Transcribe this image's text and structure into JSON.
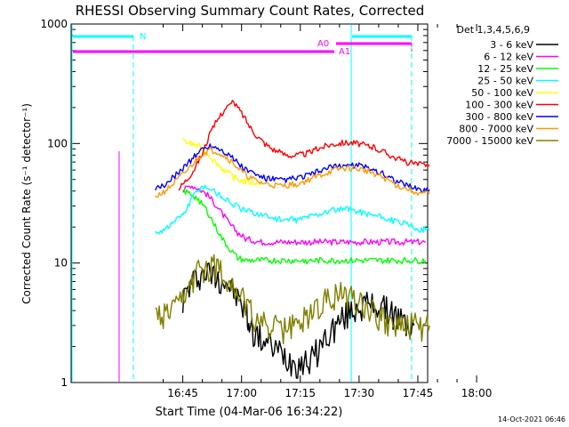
{
  "chart_data": {
    "type": "line",
    "title": "RHESSI Observing Summary Count Rates, Corrected",
    "xlabel": "Start Time (04-Mar-06 16:34:22)",
    "ylabel": "Corrected Count Rate (s⁻¹ detector⁻¹)",
    "y_scale": "log",
    "ylim": [
      1,
      1000
    ],
    "xlim_minutes": [
      16.5,
      107.5
    ],
    "x_ticks": [
      {
        "label": "16:45",
        "minute": 45
      },
      {
        "label": "17:00",
        "minute": 60
      },
      {
        "label": "17:15",
        "minute": 75
      },
      {
        "label": "17:30",
        "minute": 90
      },
      {
        "label": "17:45",
        "minute": 105
      },
      {
        "label": "18:00",
        "minute": 120
      }
    ],
    "y_ticks": [
      {
        "label": "1",
        "value": 1
      },
      {
        "label": "10",
        "value": 10
      },
      {
        "label": "100",
        "value": 100
      },
      {
        "label": "1000",
        "value": 1000
      }
    ],
    "grid": false,
    "legend_title": "Det 1,3,4,5,6,9",
    "legend_position": "right",
    "footer": "14-Oct-2021 06:46",
    "series": [
      {
        "name": "3 - 6 keV",
        "color": "#000000",
        "x": [
          45,
          47,
          49,
          51,
          53,
          55,
          57,
          59,
          61,
          62,
          64,
          66,
          68,
          70,
          72,
          74,
          76,
          78,
          80,
          82,
          84,
          86,
          88,
          90,
          92,
          94,
          96,
          98,
          100,
          102,
          104
        ],
        "values": [
          5,
          6.5,
          8,
          8.5,
          8,
          7.5,
          6.5,
          5,
          4,
          3,
          2.5,
          2.2,
          2,
          1.8,
          1.6,
          1.5,
          1.5,
          1.6,
          2,
          2.5,
          3,
          3.5,
          4,
          4.5,
          4.5,
          4.5,
          4.2,
          4,
          3.5,
          3,
          3
        ]
      },
      {
        "name": "6 - 12 keV",
        "color": "#ff00ff",
        "x": [
          45,
          47,
          49,
          51,
          53,
          55,
          57,
          59,
          61,
          63,
          65,
          67,
          69,
          71,
          73,
          75,
          77,
          79,
          81,
          83,
          85,
          87,
          89,
          91,
          93,
          95,
          97,
          99,
          101,
          103,
          105,
          107
        ],
        "values": [
          40,
          45,
          42,
          38,
          32,
          26,
          21,
          18,
          16,
          15.5,
          15,
          15,
          15,
          15,
          15,
          15,
          15,
          15,
          15,
          15,
          15,
          15,
          15,
          15,
          15,
          15,
          15,
          15,
          15,
          15,
          15,
          15
        ]
      },
      {
        "name": "12 - 25 keV",
        "color": "#00ff00",
        "x": [
          45,
          47,
          49,
          51,
          53,
          55,
          57,
          59,
          61,
          63,
          65,
          67,
          69,
          71,
          73,
          75,
          77,
          79,
          81,
          83,
          85,
          87,
          89,
          91,
          93,
          95,
          97,
          99,
          101,
          103,
          105,
          107
        ],
        "values": [
          40,
          38,
          34,
          28,
          21,
          16,
          13,
          11,
          10.5,
          10.5,
          10.5,
          10.5,
          10.5,
          10.5,
          10.5,
          10.5,
          10.5,
          10.5,
          10.5,
          10.5,
          10.5,
          10.5,
          10.5,
          10.5,
          10.5,
          10.5,
          10.5,
          10.5,
          10.5,
          10.5,
          10.5,
          10.5
        ]
      },
      {
        "name": "25 - 50 keV",
        "color": "#00ffff",
        "x": [
          38,
          40,
          42,
          44,
          46,
          48,
          50,
          52,
          54,
          56,
          58,
          60,
          62,
          64,
          66,
          68,
          70,
          72,
          74,
          76,
          78,
          80,
          82,
          84,
          86,
          88,
          90,
          92,
          94,
          96,
          98,
          100,
          102,
          104,
          106,
          108
        ],
        "values": [
          18,
          19,
          21,
          24,
          28,
          38,
          44,
          42,
          38,
          34,
          31,
          28,
          27,
          26,
          25,
          24,
          23,
          23,
          23,
          24,
          25,
          26,
          27,
          28,
          28,
          28,
          27,
          26,
          25,
          24,
          23,
          22,
          21,
          20,
          19,
          19
        ]
      },
      {
        "name": "50 - 100 keV",
        "color": "#ffff00",
        "x": [
          45,
          47,
          49,
          51,
          53,
          55,
          57,
          59,
          61,
          63,
          65
        ],
        "values": [
          105,
          100,
          95,
          85,
          72,
          62,
          55,
          50,
          48,
          47,
          47
        ]
      },
      {
        "name": "100 - 300 keV",
        "color": "#ff0000",
        "x": [
          44,
          46,
          48,
          50,
          52,
          54,
          56,
          58,
          60,
          62,
          64,
          66,
          68,
          70,
          72,
          74,
          76,
          78,
          80,
          82,
          84,
          86,
          88,
          90,
          92,
          94,
          96,
          98,
          100,
          102,
          104,
          106,
          108
        ],
        "values": [
          42,
          50,
          62,
          82,
          120,
          160,
          200,
          220,
          180,
          140,
          115,
          100,
          90,
          83,
          80,
          80,
          82,
          86,
          92,
          97,
          100,
          102,
          102,
          100,
          96,
          92,
          86,
          80,
          74,
          70,
          68,
          66,
          66
        ]
      },
      {
        "name": "300 - 800 keV",
        "color": "#0000ff",
        "x": [
          38,
          40,
          42,
          44,
          46,
          48,
          50,
          52,
          54,
          56,
          58,
          60,
          62,
          64,
          66,
          68,
          70,
          72,
          74,
          76,
          78,
          80,
          82,
          84,
          86,
          88,
          90,
          92,
          94,
          96,
          98,
          100,
          102,
          104,
          106,
          108
        ],
        "values": [
          41,
          44,
          50,
          58,
          67,
          78,
          90,
          96,
          92,
          84,
          74,
          64,
          58,
          54,
          51,
          50,
          49,
          50,
          51,
          53,
          56,
          59,
          62,
          64,
          66,
          66,
          65,
          63,
          60,
          56,
          52,
          48,
          45,
          43,
          41,
          41
        ]
      },
      {
        "name": "800 - 7000 keV",
        "color": "#ff9900",
        "x": [
          38,
          40,
          42,
          44,
          46,
          48,
          50,
          52,
          54,
          56,
          58,
          60,
          62,
          64,
          66,
          68,
          70,
          72,
          74,
          76,
          78,
          80,
          82,
          84,
          86,
          88,
          90,
          92,
          94,
          96,
          98,
          100,
          102,
          104,
          106,
          108
        ],
        "values": [
          36,
          39,
          44,
          51,
          59,
          70,
          82,
          88,
          85,
          77,
          68,
          58,
          52,
          48,
          46,
          45,
          44,
          45,
          46,
          48,
          51,
          54,
          57,
          60,
          62,
          62,
          61,
          59,
          56,
          52,
          48,
          44,
          42,
          40,
          38,
          38
        ]
      },
      {
        "name": "7000 - 15000 keV",
        "color": "#808000",
        "x": [
          38,
          40,
          42,
          44,
          46,
          48,
          50,
          52,
          54,
          56,
          58,
          60,
          62,
          64,
          66,
          68,
          70,
          72,
          74,
          76,
          78,
          80,
          82,
          84,
          86,
          88,
          90,
          92,
          94,
          96,
          98,
          100,
          102,
          104,
          106,
          108
        ],
        "values": [
          3.5,
          3.5,
          3.8,
          4.3,
          5.5,
          7.5,
          9,
          9.5,
          9,
          8,
          6.5,
          5,
          4,
          3.5,
          3,
          3,
          2.8,
          2.8,
          3,
          3.5,
          4,
          4.5,
          5,
          5.5,
          5.5,
          5.5,
          5,
          4.5,
          4,
          3.5,
          3.2,
          3,
          3,
          3,
          3,
          3
        ]
      }
    ],
    "annotations": [
      {
        "label": "N",
        "color": "#00ffff"
      },
      {
        "label": "A0",
        "color": "#ff00ff"
      },
      {
        "label": "A1",
        "color": "#ff00ff"
      }
    ]
  }
}
